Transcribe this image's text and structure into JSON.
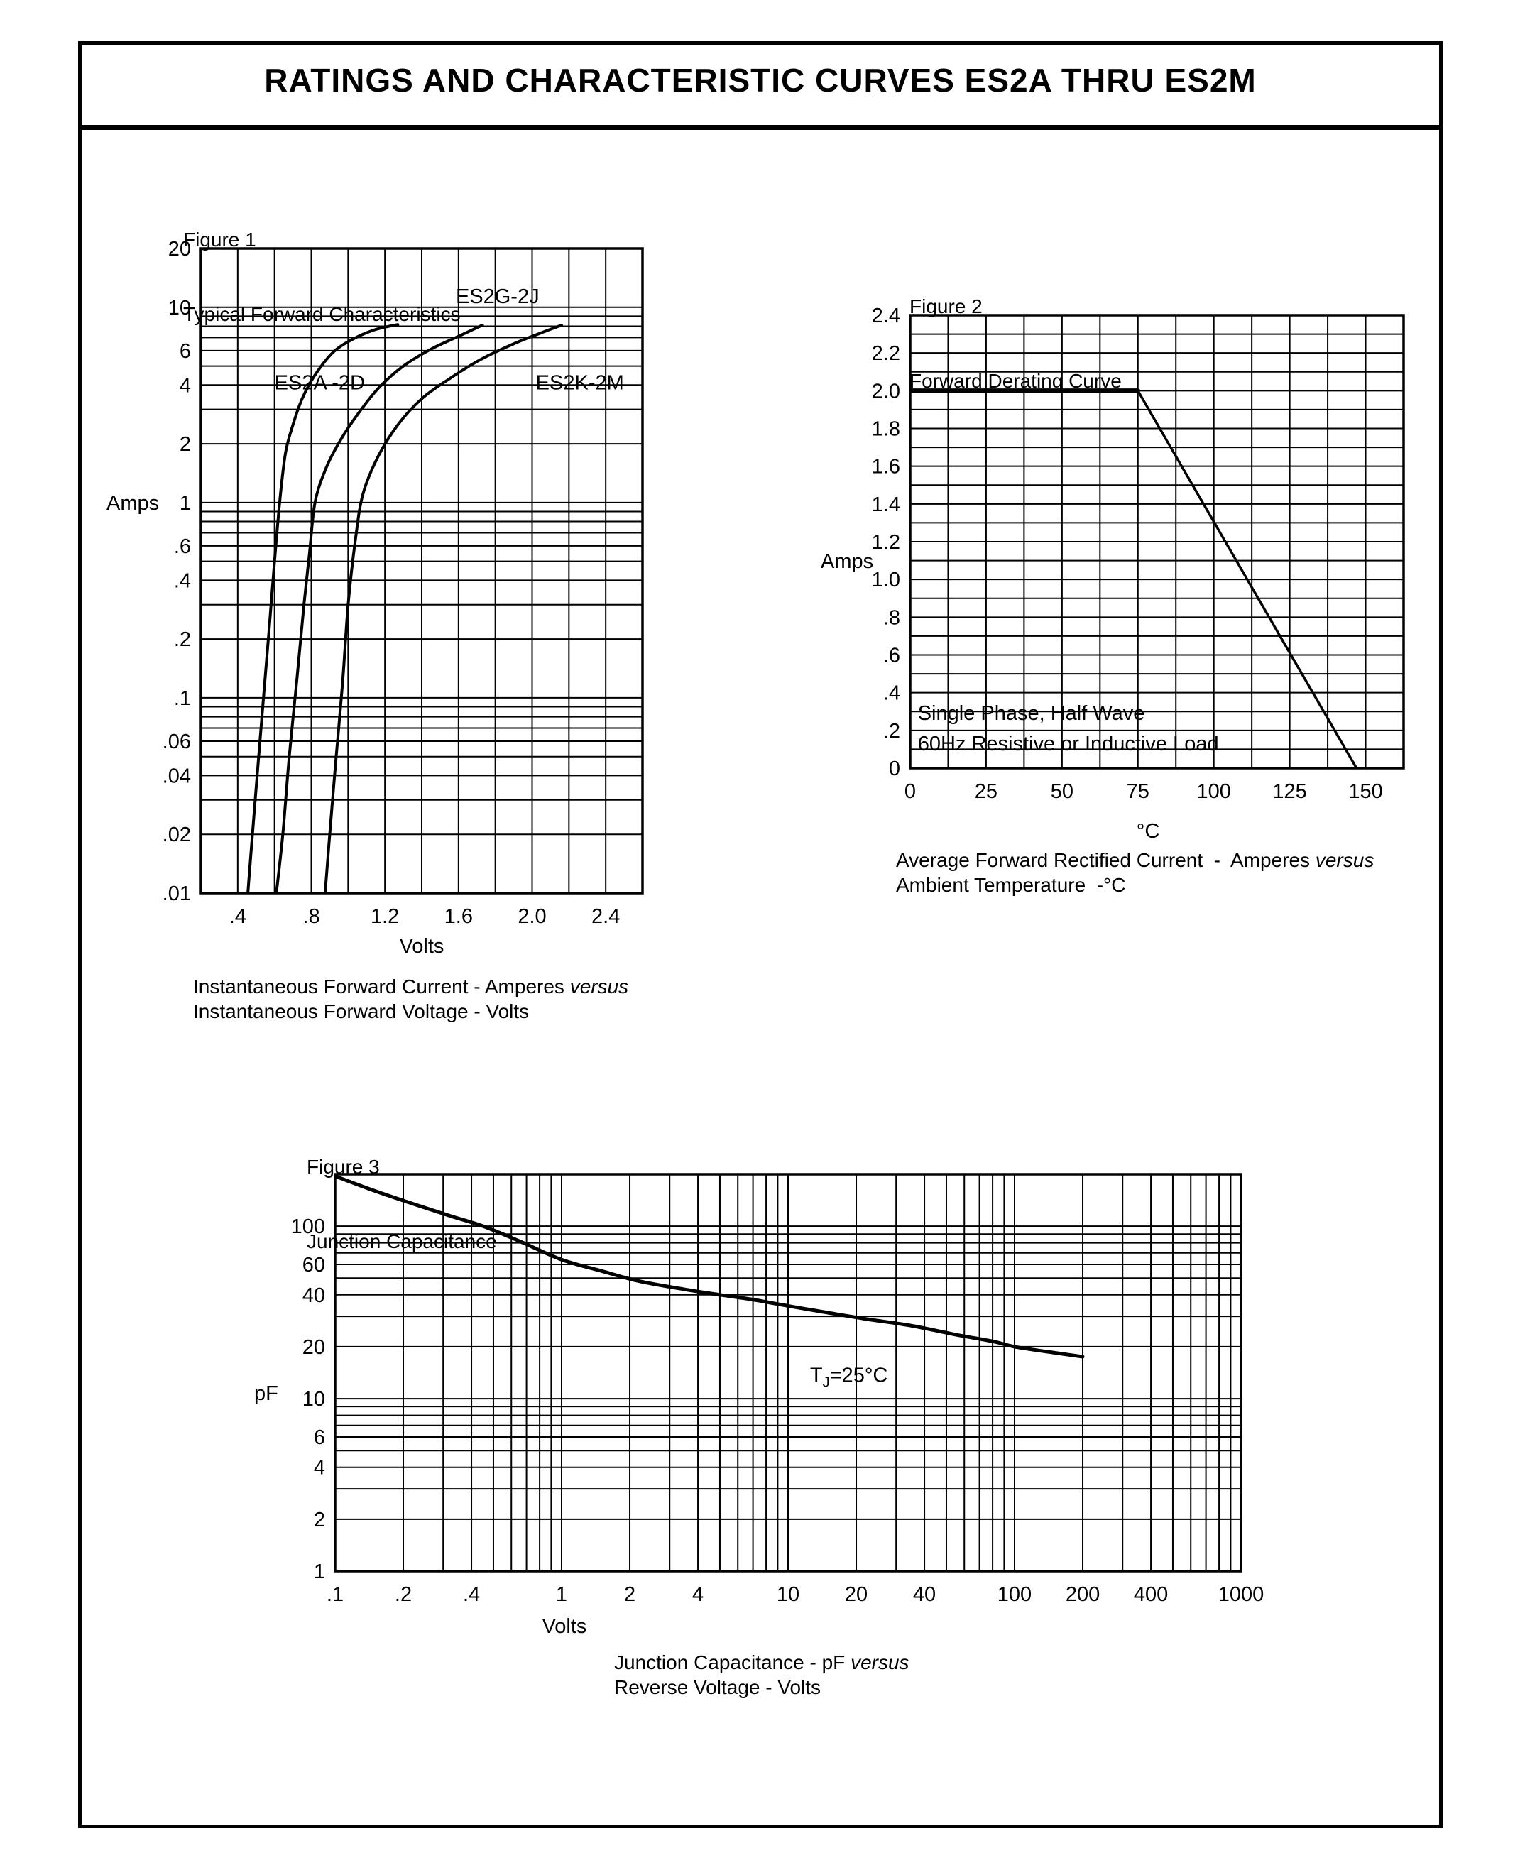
{
  "page": {
    "title": "RATINGS AND CHARACTERISTIC CURVES ES2A THRU ES2M"
  },
  "chart_data": [
    {
      "id": "fig1",
      "type": "line",
      "figure_label": "Figure 1",
      "figure_title": "Typical Forward Characteristics",
      "xlabel": "Volts",
      "ylabel": "Amps",
      "x_axis": {
        "scale": "linear",
        "min": 0.2,
        "max": 2.6,
        "grid_step": 0.2,
        "ticks": [
          {
            "v": 0.4,
            "label": ".4"
          },
          {
            "v": 0.8,
            "label": ".8"
          },
          {
            "v": 1.2,
            "label": "1.2"
          },
          {
            "v": 1.6,
            "label": "1.6"
          },
          {
            "v": 2.0,
            "label": "2.0"
          },
          {
            "v": 2.4,
            "label": "2.4"
          }
        ]
      },
      "y_axis": {
        "scale": "log",
        "min": 0.01,
        "max": 20,
        "ticks": [
          {
            "v": 20,
            "label": "20"
          },
          {
            "v": 10,
            "label": "10"
          },
          {
            "v": 6,
            "label": "6"
          },
          {
            "v": 4,
            "label": "4"
          },
          {
            "v": 2,
            "label": "2"
          },
          {
            "v": 1,
            "label": "1"
          },
          {
            "v": 0.6,
            "label": ".6"
          },
          {
            "v": 0.4,
            "label": ".4"
          },
          {
            "v": 0.2,
            "label": ".2"
          },
          {
            "v": 0.1,
            "label": ".1"
          },
          {
            "v": 0.06,
            "label": ".06"
          },
          {
            "v": 0.04,
            "label": ".04"
          },
          {
            "v": 0.02,
            "label": ".02"
          },
          {
            "v": 0.01,
            "label": ".01"
          }
        ]
      },
      "series": [
        {
          "name": "ES2A-2D",
          "width": 4,
          "points": [
            [
              0.455,
              0.01
            ],
            [
              0.48,
              0.02
            ],
            [
              0.51,
              0.045
            ],
            [
              0.54,
              0.1
            ],
            [
              0.57,
              0.22
            ],
            [
              0.6,
              0.5
            ],
            [
              0.63,
              1.05
            ],
            [
              0.66,
              1.8
            ],
            [
              0.7,
              2.5
            ],
            [
              0.75,
              3.4
            ],
            [
              0.82,
              4.5
            ],
            [
              0.92,
              5.9
            ],
            [
              1.03,
              6.9
            ],
            [
              1.15,
              7.7
            ],
            [
              1.27,
              8.15
            ]
          ]
        },
        {
          "name": "ES2G-2J",
          "width": 4,
          "points": [
            [
              0.61,
              0.01
            ],
            [
              0.645,
              0.02
            ],
            [
              0.68,
              0.05
            ],
            [
              0.72,
              0.12
            ],
            [
              0.76,
              0.3
            ],
            [
              0.79,
              0.55
            ],
            [
              0.82,
              1.0
            ],
            [
              0.88,
              1.5
            ],
            [
              0.96,
              2.1
            ],
            [
              1.06,
              2.9
            ],
            [
              1.17,
              3.9
            ],
            [
              1.3,
              5.0
            ],
            [
              1.45,
              6.1
            ],
            [
              1.6,
              7.1
            ],
            [
              1.73,
              8.1
            ]
          ]
        },
        {
          "name": "ES2K-2M",
          "width": 4,
          "points": [
            [
              0.875,
              0.01
            ],
            [
              0.9,
              0.02
            ],
            [
              0.935,
              0.05
            ],
            [
              0.97,
              0.12
            ],
            [
              1.0,
              0.3
            ],
            [
              1.04,
              0.65
            ],
            [
              1.08,
              1.1
            ],
            [
              1.16,
              1.7
            ],
            [
              1.27,
              2.5
            ],
            [
              1.4,
              3.4
            ],
            [
              1.55,
              4.3
            ],
            [
              1.72,
              5.4
            ],
            [
              1.9,
              6.5
            ],
            [
              2.05,
              7.4
            ],
            [
              2.16,
              8.1
            ]
          ]
        }
      ],
      "annotations": [
        {
          "text": "ES2A -2D",
          "x": 0.6,
          "y": 3.8
        },
        {
          "text": "ES2G-2J",
          "x": 1.585,
          "y": 10.5
        },
        {
          "text": "ES2K-2M",
          "x": 2.02,
          "y": 3.8
        }
      ],
      "caption": [
        [
          {
            "t": "Instantaneous Forward Current - Amperes "
          },
          {
            "t": "versus",
            "italic": true
          }
        ],
        [
          {
            "t": "Instantaneous Forward Voltage - Volts"
          }
        ]
      ]
    },
    {
      "id": "fig2",
      "type": "line",
      "figure_label": "Figure 2",
      "figure_title": "Forward Derating Curve",
      "xlabel": "°C",
      "ylabel": "Amps",
      "x_axis": {
        "scale": "linear",
        "min": 0,
        "max": 162.5,
        "grid_step": 12.5,
        "ticks": [
          {
            "v": 0,
            "label": "0"
          },
          {
            "v": 25,
            "label": "25"
          },
          {
            "v": 50,
            "label": "50"
          },
          {
            "v": 75,
            "label": "75"
          },
          {
            "v": 100,
            "label": "100"
          },
          {
            "v": 125,
            "label": "125"
          },
          {
            "v": 150,
            "label": "150"
          }
        ]
      },
      "y_axis": {
        "scale": "linear",
        "min": 0,
        "max": 2.4,
        "grid_step": 0.1,
        "ticks": [
          {
            "v": 2.4,
            "label": "2.4"
          },
          {
            "v": 2.2,
            "label": "2.2"
          },
          {
            "v": 2.0,
            "label": "2.0"
          },
          {
            "v": 1.8,
            "label": "1.8"
          },
          {
            "v": 1.6,
            "label": "1.6"
          },
          {
            "v": 1.4,
            "label": "1.4"
          },
          {
            "v": 1.2,
            "label": "1.2"
          },
          {
            "v": 1.0,
            "label": "1.0"
          },
          {
            "v": 0.8,
            "label": ".8"
          },
          {
            "v": 0.6,
            "label": ".6"
          },
          {
            "v": 0.4,
            "label": ".4"
          },
          {
            "v": 0.2,
            "label": ".2"
          },
          {
            "v": 0,
            "label": "0"
          }
        ]
      },
      "series": [
        {
          "name": "derating-plateau",
          "width": 6.5,
          "straight": true,
          "points": [
            [
              0,
              2.0
            ],
            [
              75,
              2.0
            ]
          ]
        },
        {
          "name": "derating-slope",
          "width": 3.5,
          "straight": true,
          "points": [
            [
              75,
              2.0
            ],
            [
              147,
              0
            ]
          ]
        }
      ],
      "annotations": [
        {
          "text": "Single Phase, Half Wave",
          "x": 2.5,
          "y": 0.255
        },
        {
          "text": "60Hz Resistive or Inductive Load",
          "x": 2.5,
          "y": 0.095
        }
      ],
      "caption": [
        [
          {
            "t": "Average Forward Rectified Current  -  Amperes "
          },
          {
            "t": "versus",
            "italic": true
          }
        ],
        [
          {
            "t": "Ambient Temperature  -°C"
          }
        ]
      ]
    },
    {
      "id": "fig3",
      "type": "line",
      "figure_label": "Figure 3",
      "figure_title": "Junction Capacitance",
      "xlabel": "Volts",
      "ylabel": "pF",
      "x_axis": {
        "scale": "log",
        "min": 0.1,
        "max": 1000,
        "ticks": [
          {
            "v": 0.1,
            "label": ".1"
          },
          {
            "v": 0.2,
            "label": ".2"
          },
          {
            "v": 0.4,
            "label": ".4"
          },
          {
            "v": 1,
            "label": "1"
          },
          {
            "v": 2,
            "label": "2"
          },
          {
            "v": 4,
            "label": "4"
          },
          {
            "v": 10,
            "label": "10"
          },
          {
            "v": 20,
            "label": "20"
          },
          {
            "v": 40,
            "label": "40"
          },
          {
            "v": 100,
            "label": "100"
          },
          {
            "v": 200,
            "label": "200"
          },
          {
            "v": 400,
            "label": "400"
          },
          {
            "v": 1000,
            "label": "1000"
          }
        ]
      },
      "y_axis": {
        "scale": "log",
        "min": 1,
        "max": 200,
        "ticks": [
          {
            "v": 100,
            "label": "100"
          },
          {
            "v": 60,
            "label": "60"
          },
          {
            "v": 40,
            "label": "40"
          },
          {
            "v": 20,
            "label": "20"
          },
          {
            "v": 10,
            "label": "10"
          },
          {
            "v": 6,
            "label": "6"
          },
          {
            "v": 4,
            "label": "4"
          },
          {
            "v": 2,
            "label": "2"
          },
          {
            "v": 1,
            "label": "1"
          }
        ]
      },
      "series": [
        {
          "name": "junction-capacitance",
          "width": 5,
          "points": [
            [
              0.1,
              195
            ],
            [
              0.15,
              160
            ],
            [
              0.22,
              135
            ],
            [
              0.32,
              115
            ],
            [
              0.45,
              100
            ],
            [
              0.65,
              82
            ],
            [
              1,
              64
            ],
            [
              1.5,
              55
            ],
            [
              2.2,
              48
            ],
            [
              3.5,
              43
            ],
            [
              5,
              40
            ],
            [
              7,
              37.5
            ],
            [
              10,
              34.5
            ],
            [
              15,
              31.5
            ],
            [
              22,
              29
            ],
            [
              35,
              26.5
            ],
            [
              55,
              23.5
            ],
            [
              80,
              21.5
            ],
            [
              100,
              20
            ],
            [
              140,
              18.7
            ],
            [
              200,
              17.5
            ]
          ]
        }
      ],
      "annotations": [
        {
          "parts": [
            {
              "t": "T"
            },
            {
              "t": "J",
              "sub": true
            },
            {
              "t": "=25°C"
            }
          ],
          "x": 12.5,
          "y": 12.5
        }
      ],
      "caption": [
        [
          {
            "t": "Junction Capacitance - pF "
          },
          {
            "t": "versus",
            "italic": true
          }
        ],
        [
          {
            "t": "Reverse Voltage - Volts"
          }
        ]
      ]
    }
  ]
}
